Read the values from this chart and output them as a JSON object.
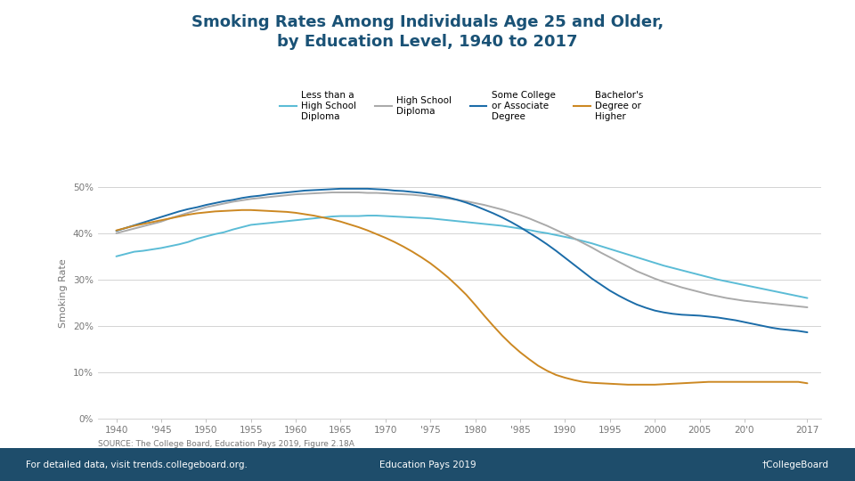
{
  "title": "Smoking Rates Among Individuals Age 25 and Older,\nby Education Level, 1940 to 2017",
  "title_color": "#1a5276",
  "ylabel": "Smoking Rate",
  "background_color": "#ffffff",
  "grid_color": "#cccccc",
  "yticks": [
    0,
    0.1,
    0.2,
    0.3,
    0.4,
    0.5
  ],
  "ytick_labels": [
    "0%",
    "10%",
    "20%",
    "30%",
    "40%",
    "50%"
  ],
  "xtick_labels": [
    "1940",
    "'945",
    "1950",
    "1955",
    "1960",
    "1965",
    "1970",
    "'975",
    "1980",
    "'985",
    "1990",
    "1995",
    "2000",
    "2005",
    "20'0",
    "2017"
  ],
  "source_text": "SOURCE: The College Board, Education Pays 2019, Figure 2.18A",
  "footer_left": "For detailed data, visit trends.collegeboard.org.",
  "footer_center": "Education Pays 2019",
  "footer_right": "†CollegeBoard",
  "series": [
    {
      "label": "Less than a\nHigh School\nDiploma",
      "color": "#5bbcd6",
      "linewidth": 1.4,
      "years": [
        1940,
        1941,
        1942,
        1943,
        1944,
        1945,
        1946,
        1947,
        1948,
        1949,
        1950,
        1951,
        1952,
        1953,
        1954,
        1955,
        1956,
        1957,
        1958,
        1959,
        1960,
        1961,
        1962,
        1963,
        1964,
        1965,
        1966,
        1967,
        1968,
        1969,
        1970,
        1971,
        1972,
        1973,
        1974,
        1975,
        1976,
        1977,
        1978,
        1979,
        1980,
        1981,
        1982,
        1983,
        1984,
        1985,
        1986,
        1987,
        1988,
        1989,
        1990,
        1991,
        1992,
        1993,
        1994,
        1995,
        1996,
        1997,
        1998,
        1999,
        2000,
        2001,
        2002,
        2003,
        2004,
        2005,
        2006,
        2007,
        2008,
        2009,
        2010,
        2011,
        2012,
        2013,
        2014,
        2015,
        2016,
        2017
      ],
      "values": [
        0.35,
        0.355,
        0.36,
        0.362,
        0.365,
        0.368,
        0.372,
        0.376,
        0.381,
        0.388,
        0.393,
        0.398,
        0.402,
        0.408,
        0.413,
        0.418,
        0.42,
        0.422,
        0.424,
        0.426,
        0.428,
        0.43,
        0.432,
        0.434,
        0.436,
        0.437,
        0.437,
        0.437,
        0.438,
        0.438,
        0.437,
        0.436,
        0.435,
        0.434,
        0.433,
        0.432,
        0.43,
        0.428,
        0.426,
        0.424,
        0.422,
        0.42,
        0.418,
        0.416,
        0.413,
        0.41,
        0.407,
        0.403,
        0.4,
        0.396,
        0.392,
        0.388,
        0.383,
        0.378,
        0.372,
        0.366,
        0.36,
        0.354,
        0.348,
        0.342,
        0.336,
        0.33,
        0.325,
        0.32,
        0.315,
        0.31,
        0.305,
        0.3,
        0.296,
        0.292,
        0.288,
        0.284,
        0.28,
        0.276,
        0.272,
        0.268,
        0.264,
        0.26
      ]
    },
    {
      "label": "High School\nDiploma",
      "color": "#aaaaaa",
      "linewidth": 1.4,
      "years": [
        1940,
        1941,
        1942,
        1943,
        1944,
        1945,
        1946,
        1947,
        1948,
        1949,
        1950,
        1951,
        1952,
        1953,
        1954,
        1955,
        1956,
        1957,
        1958,
        1959,
        1960,
        1961,
        1962,
        1963,
        1964,
        1965,
        1966,
        1967,
        1968,
        1969,
        1970,
        1971,
        1972,
        1973,
        1974,
        1975,
        1976,
        1977,
        1978,
        1979,
        1980,
        1981,
        1982,
        1983,
        1984,
        1985,
        1986,
        1987,
        1988,
        1989,
        1990,
        1991,
        1992,
        1993,
        1994,
        1995,
        1996,
        1997,
        1998,
        1999,
        2000,
        2001,
        2002,
        2003,
        2004,
        2005,
        2006,
        2007,
        2008,
        2009,
        2010,
        2011,
        2012,
        2013,
        2014,
        2015,
        2016,
        2017
      ],
      "values": [
        0.4,
        0.405,
        0.41,
        0.415,
        0.42,
        0.425,
        0.432,
        0.438,
        0.444,
        0.45,
        0.456,
        0.46,
        0.464,
        0.468,
        0.471,
        0.474,
        0.476,
        0.478,
        0.48,
        0.482,
        0.484,
        0.485,
        0.486,
        0.487,
        0.488,
        0.488,
        0.488,
        0.488,
        0.487,
        0.487,
        0.486,
        0.485,
        0.484,
        0.483,
        0.481,
        0.479,
        0.477,
        0.475,
        0.472,
        0.469,
        0.465,
        0.461,
        0.456,
        0.451,
        0.445,
        0.439,
        0.432,
        0.424,
        0.416,
        0.407,
        0.398,
        0.389,
        0.379,
        0.369,
        0.358,
        0.348,
        0.338,
        0.328,
        0.318,
        0.31,
        0.302,
        0.295,
        0.289,
        0.283,
        0.278,
        0.273,
        0.268,
        0.264,
        0.26,
        0.257,
        0.254,
        0.252,
        0.25,
        0.248,
        0.246,
        0.244,
        0.242,
        0.24
      ]
    },
    {
      "label": "Some College\nor Associate\nDegree",
      "color": "#1b6ca8",
      "linewidth": 1.4,
      "years": [
        1940,
        1941,
        1942,
        1943,
        1944,
        1945,
        1946,
        1947,
        1948,
        1949,
        1950,
        1951,
        1952,
        1953,
        1954,
        1955,
        1956,
        1957,
        1958,
        1959,
        1960,
        1961,
        1962,
        1963,
        1964,
        1965,
        1966,
        1967,
        1968,
        1969,
        1970,
        1971,
        1972,
        1973,
        1974,
        1975,
        1976,
        1977,
        1978,
        1979,
        1980,
        1981,
        1982,
        1983,
        1984,
        1985,
        1986,
        1987,
        1988,
        1989,
        1990,
        1991,
        1992,
        1993,
        1994,
        1995,
        1996,
        1997,
        1998,
        1999,
        2000,
        2001,
        2002,
        2003,
        2004,
        2005,
        2006,
        2007,
        2008,
        2009,
        2010,
        2011,
        2012,
        2013,
        2014,
        2015,
        2016,
        2017
      ],
      "values": [
        0.405,
        0.411,
        0.417,
        0.423,
        0.429,
        0.435,
        0.441,
        0.447,
        0.452,
        0.456,
        0.461,
        0.465,
        0.469,
        0.472,
        0.476,
        0.479,
        0.481,
        0.484,
        0.486,
        0.488,
        0.49,
        0.492,
        0.493,
        0.494,
        0.495,
        0.496,
        0.496,
        0.496,
        0.496,
        0.495,
        0.494,
        0.492,
        0.491,
        0.489,
        0.487,
        0.484,
        0.481,
        0.477,
        0.472,
        0.466,
        0.459,
        0.451,
        0.443,
        0.434,
        0.424,
        0.413,
        0.401,
        0.389,
        0.376,
        0.362,
        0.347,
        0.332,
        0.317,
        0.302,
        0.289,
        0.276,
        0.265,
        0.255,
        0.246,
        0.239,
        0.233,
        0.229,
        0.226,
        0.224,
        0.223,
        0.222,
        0.22,
        0.218,
        0.215,
        0.212,
        0.208,
        0.204,
        0.2,
        0.196,
        0.193,
        0.191,
        0.189,
        0.186
      ]
    },
    {
      "label": "Bachelor's\nDegree or\nHigher",
      "color": "#cc8822",
      "linewidth": 1.4,
      "years": [
        1940,
        1941,
        1942,
        1943,
        1944,
        1945,
        1946,
        1947,
        1948,
        1949,
        1950,
        1951,
        1952,
        1953,
        1954,
        1955,
        1956,
        1957,
        1958,
        1959,
        1960,
        1961,
        1962,
        1963,
        1964,
        1965,
        1966,
        1967,
        1968,
        1969,
        1970,
        1971,
        1972,
        1973,
        1974,
        1975,
        1976,
        1977,
        1978,
        1979,
        1980,
        1981,
        1982,
        1983,
        1984,
        1985,
        1986,
        1987,
        1988,
        1989,
        1990,
        1991,
        1992,
        1993,
        1994,
        1995,
        1996,
        1997,
        1998,
        1999,
        2000,
        2001,
        2002,
        2003,
        2004,
        2005,
        2006,
        2007,
        2008,
        2009,
        2010,
        2011,
        2012,
        2013,
        2014,
        2015,
        2016,
        2017
      ],
      "values": [
        0.406,
        0.411,
        0.416,
        0.42,
        0.424,
        0.428,
        0.432,
        0.436,
        0.44,
        0.443,
        0.445,
        0.447,
        0.448,
        0.449,
        0.45,
        0.45,
        0.449,
        0.448,
        0.447,
        0.446,
        0.444,
        0.441,
        0.438,
        0.434,
        0.43,
        0.425,
        0.419,
        0.413,
        0.406,
        0.398,
        0.39,
        0.381,
        0.371,
        0.36,
        0.348,
        0.335,
        0.32,
        0.304,
        0.286,
        0.267,
        0.245,
        0.222,
        0.2,
        0.179,
        0.16,
        0.143,
        0.128,
        0.114,
        0.103,
        0.094,
        0.088,
        0.083,
        0.079,
        0.077,
        0.076,
        0.075,
        0.074,
        0.073,
        0.073,
        0.073,
        0.073,
        0.074,
        0.075,
        0.076,
        0.077,
        0.078,
        0.079,
        0.079,
        0.079,
        0.079,
        0.079,
        0.079,
        0.079,
        0.079,
        0.079,
        0.079,
        0.079,
        0.076
      ]
    }
  ]
}
